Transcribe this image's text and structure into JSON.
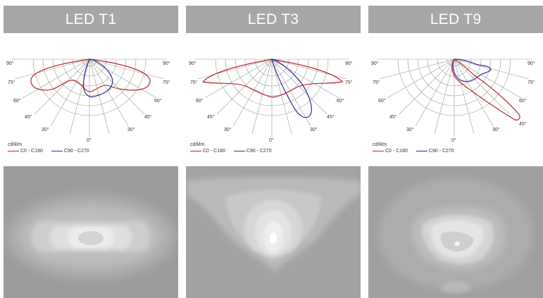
{
  "columns": [
    {
      "title": "LED T1",
      "angle_labels_left": [
        "90°",
        "75°",
        "60°",
        "45°",
        "30°"
      ],
      "angle_labels_right": [
        "90°",
        "75°",
        "60°",
        "45°",
        "30°"
      ],
      "zero_label": "0°",
      "unit": "cd/klm",
      "legend": [
        {
          "label": "C0 - C180",
          "color": "#c0272d"
        },
        {
          "label": "C90 - C270",
          "color": "#2e3192"
        }
      ]
    },
    {
      "title": "LED T3",
      "angle_labels_left": [
        "90°",
        "75°",
        "60°",
        "45°",
        "30°"
      ],
      "angle_labels_right": [
        "90°",
        "75°",
        "60°",
        "45°",
        "30°"
      ],
      "zero_label": "0°",
      "unit": "cd/klm",
      "legend": [
        {
          "label": "C0 - C180",
          "color": "#c0272d"
        },
        {
          "label": "C90 - C270",
          "color": "#2e3192"
        }
      ]
    },
    {
      "title": "LED T9",
      "angle_labels_left": [
        "90°",
        "75°",
        "60°",
        "45°",
        "30°"
      ],
      "angle_labels_right": [
        "90°",
        "75°",
        "60°",
        "45°",
        "30°"
      ],
      "zero_label": "0°",
      "unit": "cd/klm",
      "legend": [
        {
          "label": "C0 - C180",
          "color": "#c0272d"
        },
        {
          "label": "C90 - C270",
          "color": "#2e3192"
        }
      ]
    }
  ]
}
